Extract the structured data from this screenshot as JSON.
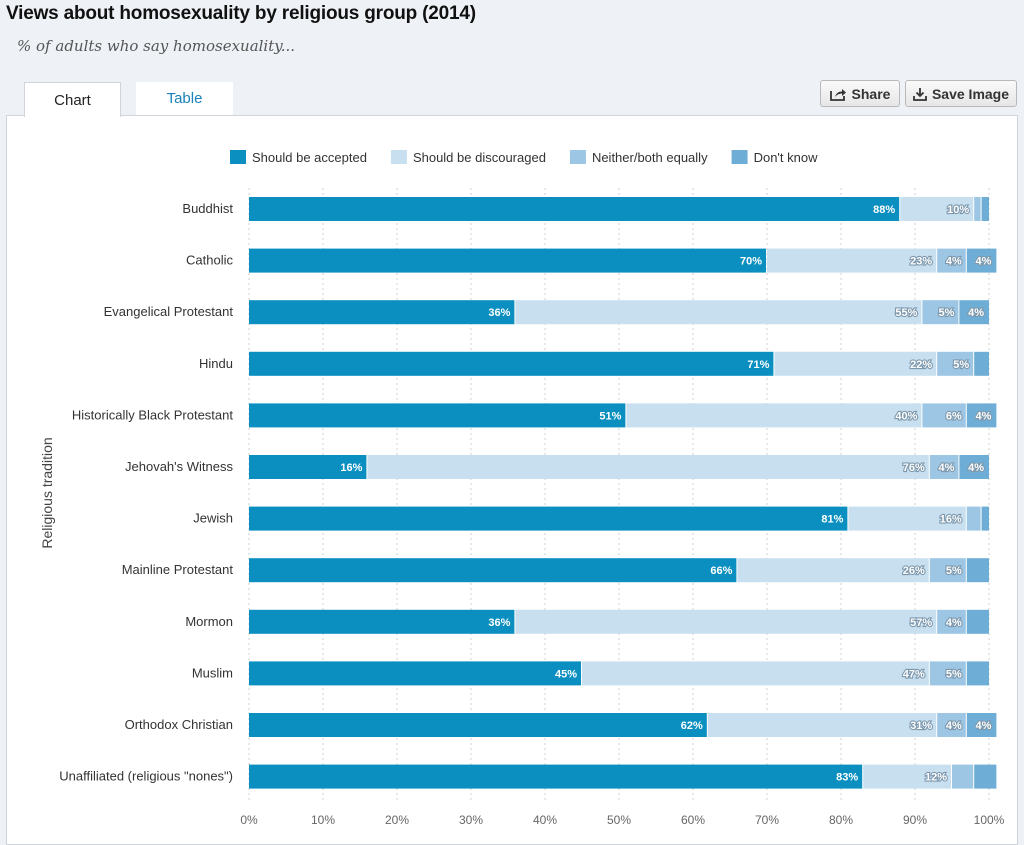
{
  "header": {
    "title": "Views about homosexuality by religious group (2014)",
    "subtitle": "% of adults who say homosexuality..."
  },
  "tabs": [
    {
      "label": "Chart",
      "active": true
    },
    {
      "label": "Table",
      "active": false
    }
  ],
  "actions": {
    "share_label": "Share",
    "save_label": "Save Image",
    "share_icon": "share-icon",
    "save_icon": "download-icon"
  },
  "chart_data": {
    "type": "bar",
    "orientation": "horizontal",
    "stacked": true,
    "ylabel": "Religious tradition",
    "xlim": [
      0,
      100
    ],
    "x_ticks": [
      "0%",
      "10%",
      "20%",
      "30%",
      "40%",
      "50%",
      "60%",
      "70%",
      "80%",
      "90%",
      "100%"
    ],
    "grid": "vertical dotted",
    "legend_position": "top",
    "categories": [
      "Buddhist",
      "Catholic",
      "Evangelical Protestant",
      "Hindu",
      "Historically Black Protestant",
      "Jehovah's Witness",
      "Jewish",
      "Mainline Protestant",
      "Mormon",
      "Muslim",
      "Orthodox Christian",
      "Unaffiliated (religious \"nones\")"
    ],
    "series": [
      {
        "name": "Should be accepted",
        "color": "#0a8fc0",
        "values": [
          88,
          70,
          36,
          71,
          51,
          16,
          81,
          66,
          36,
          45,
          62,
          83
        ],
        "labels": [
          "88%",
          "70%",
          "36%",
          "71%",
          "51%",
          "16%",
          "81%",
          "66%",
          "36%",
          "45%",
          "62%",
          "83%"
        ]
      },
      {
        "name": "Should be discouraged",
        "color": "#c8dff0",
        "values": [
          10,
          23,
          55,
          22,
          40,
          76,
          16,
          26,
          57,
          47,
          31,
          12
        ],
        "labels": [
          "10%",
          "23%",
          "55%",
          "22%",
          "40%",
          "76%",
          "16%",
          "26%",
          "57%",
          "47%",
          "31%",
          "12%"
        ]
      },
      {
        "name": "Neither/both equally",
        "color": "#9cc6e4",
        "values": [
          1,
          4,
          5,
          5,
          6,
          4,
          2,
          5,
          4,
          5,
          4,
          3
        ],
        "labels": [
          "",
          "4%",
          "5%",
          "5%",
          "6%",
          "4%",
          "",
          "5%",
          "4%",
          "5%",
          "4%",
          ""
        ]
      },
      {
        "name": "Don't know",
        "color": "#6eaed6",
        "values": [
          1,
          4,
          4,
          2,
          4,
          4,
          1,
          3,
          3,
          3,
          4,
          3
        ],
        "labels": [
          "",
          "4%",
          "4%",
          "",
          "4%",
          "4%",
          "",
          "",
          "",
          "",
          "4%",
          ""
        ]
      }
    ]
  }
}
